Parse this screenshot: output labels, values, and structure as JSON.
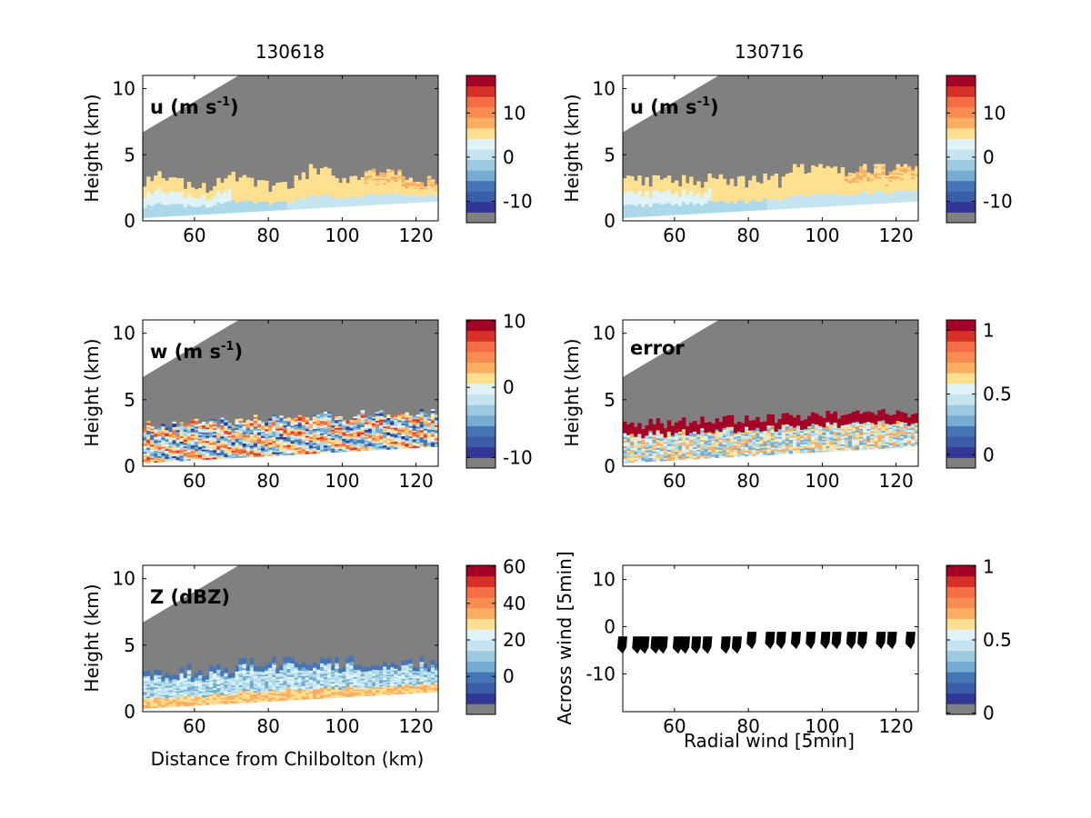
{
  "figure": {
    "titles": [
      "130618",
      "130716"
    ]
  },
  "colors": {
    "gray": "#808080",
    "colormap": [
      "#313695",
      "#4575b4",
      "#74add1",
      "#abd9e9",
      "#e0f3f8",
      "#fee090",
      "#fdae61",
      "#f46d43",
      "#d73027",
      "#a50026"
    ],
    "colormap_full": [
      "#313695",
      "#3a5fa8",
      "#4575b4",
      "#74add1",
      "#9ecae1",
      "#c6e4ef",
      "#e0f3f8",
      "#fee090",
      "#fdae61",
      "#f88d52",
      "#f46d43",
      "#d73027",
      "#a50026"
    ]
  },
  "chart_data": [
    {
      "type": "heatmap",
      "title": "130618",
      "panel_label": {
        "main": "u (m s",
        "sup": "-1",
        "close": ")"
      },
      "xlabel": "",
      "ylabel": "Height (km)",
      "xlim": [
        46,
        126
      ],
      "ylim": [
        0,
        11
      ],
      "xticks": [
        "60",
        "80",
        "100",
        "120"
      ],
      "yticks": [
        "0",
        "5",
        "10"
      ],
      "colorbar": {
        "ticks": [
          "10",
          "0",
          "-10"
        ]
      }
    },
    {
      "type": "heatmap",
      "title": "130716",
      "panel_label": {
        "main": "u (m s",
        "sup": "-1",
        "close": ")"
      },
      "xlabel": "",
      "ylabel": "Height (km)",
      "xlim": [
        46,
        126
      ],
      "ylim": [
        0,
        11
      ],
      "xticks": [
        "60",
        "80",
        "100",
        "120"
      ],
      "yticks": [
        "0",
        "5",
        "10"
      ],
      "colorbar": {
        "ticks": [
          "10",
          "0",
          "-10"
        ]
      }
    },
    {
      "type": "heatmap",
      "panel_label": {
        "main": "w (m s",
        "sup": "-1",
        "close": ")"
      },
      "xlabel": "",
      "ylabel": "Height (km)",
      "xlim": [
        46,
        126
      ],
      "ylim": [
        0,
        11
      ],
      "xticks": [
        "60",
        "80",
        "100",
        "120"
      ],
      "yticks": [
        "0",
        "5",
        "10"
      ],
      "colorbar": {
        "ticks": [
          "10",
          "0",
          "-10"
        ]
      }
    },
    {
      "type": "heatmap",
      "panel_label": {
        "main": "error"
      },
      "xlabel": "",
      "ylabel": "Height (km)",
      "xlim": [
        46,
        126
      ],
      "ylim": [
        0,
        11
      ],
      "xticks": [
        "60",
        "80",
        "100",
        "120"
      ],
      "yticks": [
        "0",
        "5",
        "10"
      ],
      "colorbar": {
        "ticks": [
          "1",
          "0.5",
          "0"
        ]
      }
    },
    {
      "type": "heatmap",
      "panel_label": {
        "main": "Z (dBZ)"
      },
      "xlabel": "Distance from Chilbolton (km)",
      "ylabel": "Height (km)",
      "xlim": [
        46,
        126
      ],
      "ylim": [
        0,
        11
      ],
      "xticks": [
        "60",
        "80",
        "100",
        "120"
      ],
      "yticks": [
        "0",
        "5",
        "10"
      ],
      "colorbar": {
        "ticks": [
          "60",
          "40",
          "20",
          "0"
        ]
      }
    },
    {
      "type": "scatter",
      "xlabel": "Radial wind [5min]",
      "ylabel": "Across wind [5min]",
      "xlim": [
        46,
        126
      ],
      "ylim": [
        -18,
        13
      ],
      "xticks": [
        "60",
        "80",
        "100",
        "120"
      ],
      "yticks": [
        "10",
        "0",
        "-10"
      ],
      "colorbar": {
        "ticks": [
          "1",
          "0.5",
          "0"
        ]
      },
      "vectors": {
        "x": [
          46,
          50,
          52,
          55,
          57,
          61,
          63,
          66,
          69,
          74,
          77,
          81,
          86,
          89,
          93,
          97,
          101,
          104,
          108,
          111,
          116,
          119,
          124
        ],
        "y": [
          -4,
          -4,
          -4,
          -4,
          -4,
          -4,
          -4,
          -4,
          -4,
          -4,
          -4,
          -3,
          -3,
          -3,
          -3,
          -3,
          -3,
          -3,
          -3,
          -3,
          -3,
          -3,
          -3
        ]
      }
    }
  ]
}
